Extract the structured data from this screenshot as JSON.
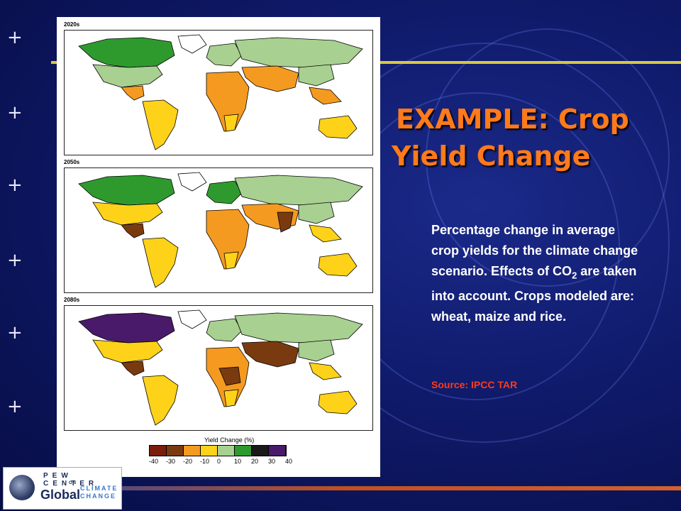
{
  "slide": {
    "title_line1": "EXAMPLE: Crop",
    "title_line2": "Yield Change",
    "body": "Percentage change in average crop yields for the climate change scenario. Effects of CO",
    "body_sub": "2",
    "body_rest": " are taken into account. Crops modeled are: wheat, maize and rice.",
    "source": "Source:  IPCC TAR"
  },
  "maps": {
    "panels": [
      {
        "label": "2020s"
      },
      {
        "label": "2050s"
      },
      {
        "label": "2080s"
      }
    ],
    "legend_title": "Yield Change (%)",
    "legend_ticks": [
      "-40",
      "-30",
      "-20",
      "-10",
      "0",
      "10",
      "20",
      "30",
      "40"
    ],
    "legend_colors": [
      "#7a1e0a",
      "#7a3a10",
      "#f59a20",
      "#ffd21a",
      "#a8d090",
      "#2e9a2e",
      "#1a1a1a",
      "#4a1a6a"
    ]
  },
  "logo": {
    "pew": "PEW CENTER",
    "on": "ON",
    "global": "Global",
    "climate": "CLIMATE",
    "change": "CHANGE"
  },
  "colors": {
    "title": "#ff7a1a",
    "source": "#ff3a1a",
    "background": "#0f1a6a"
  }
}
